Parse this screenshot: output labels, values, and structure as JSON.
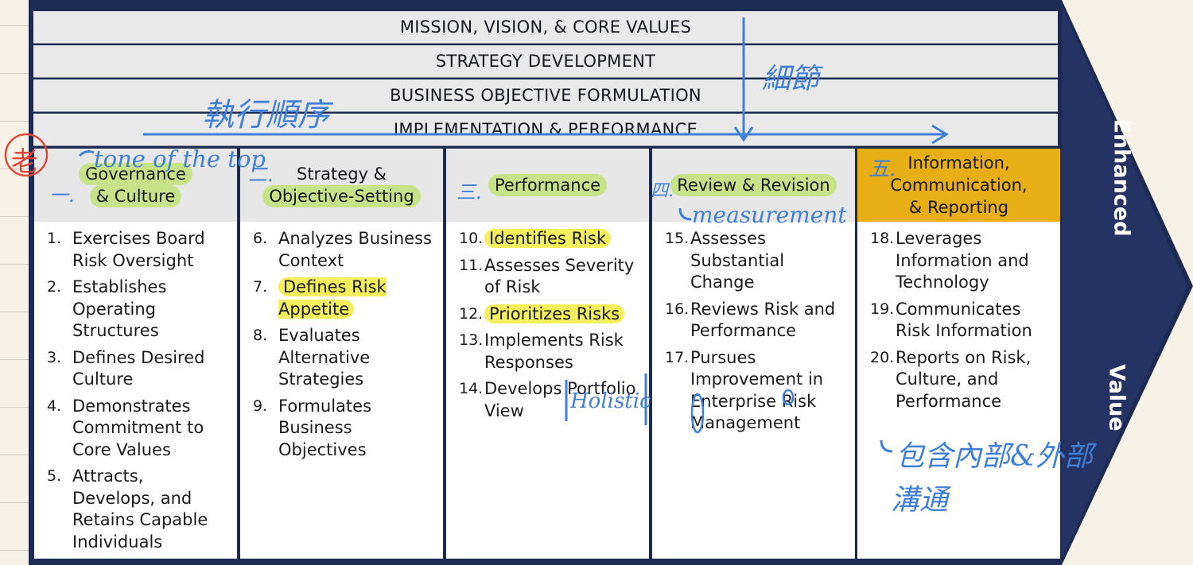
{
  "bands": [
    "MISSION, VISION, & CORE VALUES",
    "STRATEGY DEVELOPMENT",
    "BUSINESS OBJECTIVE FORMULATION",
    "IMPLEMENTATION & PERFORMANCE"
  ],
  "columns": [
    {
      "title_lines": [
        "Governance",
        "& Culture"
      ],
      "items": [
        {
          "num": "1.",
          "text": "Exercises Board Risk Oversight"
        },
        {
          "num": "2.",
          "text": "Establishes Operating Structures"
        },
        {
          "num": "3.",
          "text": "Defines Desired Culture"
        },
        {
          "num": "4.",
          "text": "Demonstrates Commitment to Core Values"
        },
        {
          "num": "5.",
          "text": "Attracts, Develops, and Retains Capable Individuals"
        }
      ]
    },
    {
      "title_lines": [
        "Strategy &",
        "Objective-Setting"
      ],
      "items": [
        {
          "num": "6.",
          "text": "Analyzes Business Context"
        },
        {
          "num": "7.",
          "text": "Defines Risk Appetite"
        },
        {
          "num": "8.",
          "text": "Evaluates Alternative Strategies"
        },
        {
          "num": "9.",
          "text": "Formulates Business Objectives"
        }
      ]
    },
    {
      "title_lines": [
        "Performance"
      ],
      "items": [
        {
          "num": "10.",
          "text": "Identifies Risk"
        },
        {
          "num": "11.",
          "text": "Assesses Severity of Risk"
        },
        {
          "num": "12.",
          "text": "Prioritizes Risks"
        },
        {
          "num": "13.",
          "text": "Implements Risk Responses"
        },
        {
          "num": "14.",
          "text": "Develops Portfolio View"
        }
      ]
    },
    {
      "title_lines": [
        "Review & Revision"
      ],
      "items": [
        {
          "num": "15.",
          "text": "Assesses Substantial Change"
        },
        {
          "num": "16.",
          "text": "Reviews Risk and Performance"
        },
        {
          "num": "17.",
          "text": "Pursues Improvement in Enterprise Risk Management"
        }
      ]
    },
    {
      "title_lines": [
        "Information,",
        "Communication,",
        "& Reporting"
      ],
      "items": [
        {
          "num": "18.",
          "text": "Leverages Information and Technology"
        },
        {
          "num": "19.",
          "text": "Communicates Risk Information"
        },
        {
          "num": "20.",
          "text": "Reports on Risk, Culture, and Performance"
        }
      ]
    }
  ],
  "arrow_labels": {
    "top": "Enhanced",
    "bottom": "Value"
  },
  "annotations": {
    "execution_order": "執行順序",
    "detail": "細節",
    "tone_at_top": "tone of the top",
    "measurement": "measurement",
    "holistic": "Holistic",
    "comm_note_line1": "包含內部&外部",
    "comm_note_line2": "溝通",
    "col_markers": [
      "一.",
      "二.",
      "三.",
      "四.",
      "五."
    ],
    "red_mark": "老"
  },
  "colors": {
    "frame": "#1d2a52",
    "band_bg": "#e9e9ea",
    "gold_header": "#e8ae16",
    "highlight_green": "#c7e38a",
    "highlight_yellow": "#f4ef5c",
    "ink_blue": "#3f7fd6",
    "ink_red": "#e0483a"
  }
}
